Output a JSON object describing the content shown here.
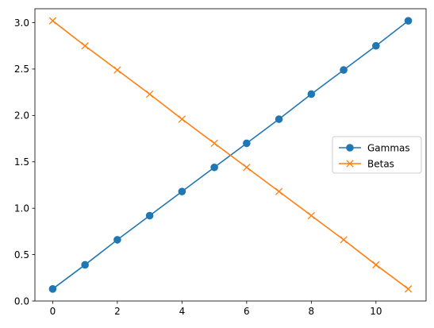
{
  "chart_data": {
    "type": "line",
    "title": "",
    "xlabel": "",
    "ylabel": "",
    "xlim": [
      -0.55,
      11.55
    ],
    "ylim": [
      0.0,
      3.15
    ],
    "xticks": [
      0,
      2,
      4,
      6,
      8,
      10
    ],
    "xtick_labels": [
      "0",
      "2",
      "4",
      "6",
      "8",
      "10"
    ],
    "yticks": [
      0.0,
      0.5,
      1.0,
      1.5,
      2.0,
      2.5,
      3.0
    ],
    "ytick_labels": [
      "0.0",
      "0.5",
      "1.0",
      "1.5",
      "2.0",
      "2.5",
      "3.0"
    ],
    "grid": false,
    "legend_position": "center-right",
    "x": [
      0,
      1,
      2,
      3,
      4,
      5,
      6,
      7,
      8,
      9,
      10,
      11
    ],
    "series": [
      {
        "name": "Gammas",
        "color": "#1f77b4",
        "marker": "circle",
        "values": [
          0.13,
          0.39,
          0.66,
          0.92,
          1.18,
          1.44,
          1.7,
          1.96,
          2.23,
          2.49,
          2.75,
          3.02
        ]
      },
      {
        "name": "Betas",
        "color": "#ff7f0e",
        "marker": "x",
        "values": [
          3.02,
          2.75,
          2.49,
          2.23,
          1.96,
          1.7,
          1.44,
          1.18,
          0.92,
          0.66,
          0.39,
          0.13
        ]
      }
    ]
  }
}
